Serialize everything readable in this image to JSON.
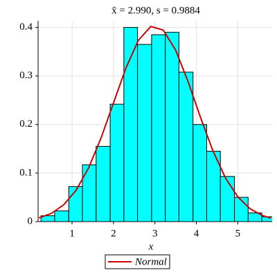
{
  "chart_data": {
    "type": "histogram",
    "title": "x̄ = 2.990,  s = 0.9884",
    "x_label": "x",
    "bins": [
      0.25,
      0.58,
      0.92,
      1.25,
      1.58,
      1.92,
      2.25,
      2.58,
      2.92,
      3.25,
      3.58,
      3.92,
      4.25,
      4.58,
      4.92,
      5.25,
      5.58,
      5.92
    ],
    "values": [
      0.012,
      0.022,
      0.072,
      0.117,
      0.155,
      0.242,
      0.4,
      0.365,
      0.385,
      0.39,
      0.308,
      0.2,
      0.145,
      0.093,
      0.05,
      0.018,
      0.01
    ],
    "color": "#00ffff",
    "series": [
      {
        "name": "Normal",
        "color": "#cc0000",
        "x": [
          0.2,
          0.5,
          0.8,
          1.1,
          1.4,
          1.7,
          2.0,
          2.3,
          2.6,
          2.9,
          3.2,
          3.5,
          3.8,
          4.1,
          4.4,
          4.7,
          5.0,
          5.3,
          5.6,
          5.8
        ],
        "values": [
          0.0075,
          0.0169,
          0.0347,
          0.0649,
          0.1107,
          0.1722,
          0.2444,
          0.3163,
          0.3734,
          0.4019,
          0.3946,
          0.3533,
          0.2885,
          0.2148,
          0.1459,
          0.0904,
          0.0511,
          0.0263,
          0.0124,
          0.0071
        ]
      }
    ],
    "xlim": [
      0.18,
      5.83
    ],
    "ylim": [
      0,
      0.408
    ],
    "xticks": [
      1,
      2,
      3,
      4,
      5
    ],
    "yticks": [
      0,
      0.1,
      0.2,
      0.3,
      0.4
    ],
    "grid": true,
    "legend": "bottom"
  }
}
